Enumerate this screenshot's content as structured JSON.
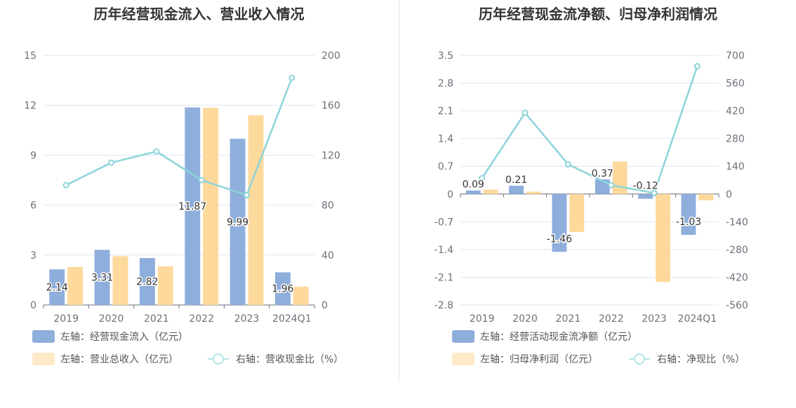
{
  "chart_data": [
    {
      "type": "bar",
      "title": "历年经营现金流入、营业收入情况",
      "categories": [
        "2019",
        "2020",
        "2021",
        "2022",
        "2023",
        "2024Q1"
      ],
      "y_left": {
        "ticks": [
          "0",
          "3",
          "6",
          "9",
          "12",
          "15"
        ],
        "ylim": [
          0,
          15
        ]
      },
      "y_right": {
        "ticks": [
          "0",
          "40",
          "80",
          "120",
          "160",
          "200"
        ],
        "ylim": [
          0,
          200
        ]
      },
      "series": [
        {
          "name": "左轴：经营现金流入（亿元）",
          "type": "bar",
          "axis": "left",
          "color": "#8eaedc",
          "values": [
            2.14,
            3.31,
            2.82,
            11.87,
            9.99,
            1.96
          ],
          "labels": [
            "2.14",
            "3.31",
            "2.82",
            "11.87",
            "9.99",
            "1.96"
          ]
        },
        {
          "name": "左轴：营业总收入（亿元）",
          "type": "bar",
          "axis": "left",
          "color": "#fed99c",
          "values": [
            2.28,
            2.93,
            2.32,
            11.85,
            11.4,
            1.1
          ]
        },
        {
          "name": "右轴：营收现金比（%）",
          "type": "line",
          "axis": "right",
          "color": "#8cd4d9",
          "values": [
            96,
            114,
            123,
            100,
            88,
            182
          ]
        }
      ],
      "grid": true
    },
    {
      "type": "bar",
      "title": "历年经营现金流净额、归母净利润情况",
      "categories": [
        "2019",
        "2020",
        "2021",
        "2022",
        "2023",
        "2024Q1"
      ],
      "y_left": {
        "ticks": [
          "-2.8",
          "-2.1",
          "-1.4",
          "-0.7",
          "0",
          "0.7",
          "1.4",
          "2.1",
          "2.8",
          "3.5"
        ],
        "ylim": [
          -2.8,
          3.5
        ]
      },
      "y_right": {
        "ticks": [
          "-560",
          "-420",
          "-280",
          "-140",
          "0",
          "140",
          "280",
          "420",
          "560",
          "700"
        ],
        "ylim": [
          -560,
          700
        ]
      },
      "series": [
        {
          "name": "左轴：经营活动现金流净额（亿元）",
          "type": "bar",
          "axis": "left",
          "color": "#8eaedc",
          "values": [
            0.09,
            0.21,
            -1.46,
            0.37,
            -0.12,
            -1.03
          ],
          "labels": [
            "0.09",
            "0.21",
            "-1.46",
            "0.37",
            "-0.12",
            "-1.03"
          ]
        },
        {
          "name": "左轴：归母净利润（亿元）",
          "type": "bar",
          "axis": "left",
          "color": "#fed99c",
          "values": [
            0.11,
            0.06,
            -0.96,
            0.82,
            -2.22,
            -0.16
          ]
        },
        {
          "name": "右轴：净现比（%）",
          "type": "line",
          "axis": "right",
          "color": "#8cd4d9",
          "values": [
            80,
            410,
            150,
            45,
            5,
            645
          ]
        }
      ],
      "grid": true
    }
  ]
}
